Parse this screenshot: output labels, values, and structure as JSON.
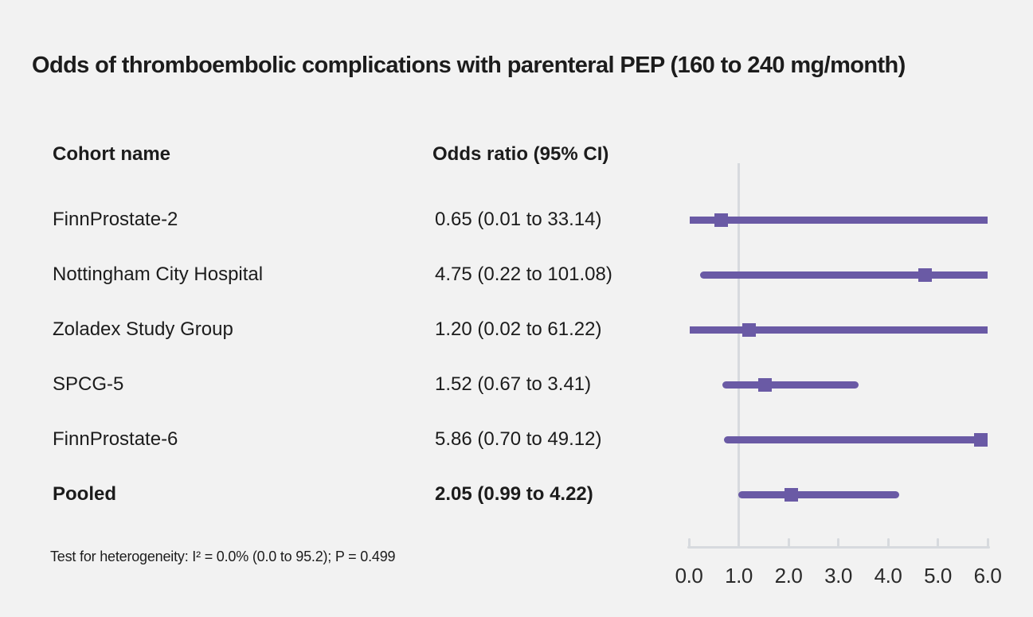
{
  "title": "Odds of thromboembolic complications with parenteral PEP (160 to 240 mg/month)",
  "columns": {
    "cohort": "Cohort name",
    "odds": "Odds ratio (95% CI)"
  },
  "footnote": "Test for heterogeneity: I² = 0.0% (0.0 to 95.2); P = 0.499",
  "colors": {
    "marker": "#6a5aa5",
    "axis": "#d7dade",
    "background": "#f2f2f2",
    "text": "#1c1c1c"
  },
  "chart_data": {
    "type": "forest",
    "title": "Odds of thromboembolic complications with parenteral PEP (160 to 240 mg/month)",
    "xlabel": "",
    "x_axis": {
      "min": 0,
      "max": 6,
      "ticks": [
        "0.0",
        "1.0",
        "2.0",
        "3.0",
        "4.0",
        "5.0",
        "6.0"
      ],
      "reference_line": 1.0
    },
    "rows": [
      {
        "cohort": "FinnProstate-2",
        "or": 0.65,
        "ci_low": 0.01,
        "ci_high": 33.14,
        "display": "0.65 (0.01 to 33.14)",
        "bold": false
      },
      {
        "cohort": "Nottingham City Hospital",
        "or": 4.75,
        "ci_low": 0.22,
        "ci_high": 101.08,
        "display": "4.75 (0.22 to 101.08)",
        "bold": false
      },
      {
        "cohort": "Zoladex Study Group",
        "or": 1.2,
        "ci_low": 0.02,
        "ci_high": 61.22,
        "display": "1.20 (0.02 to 61.22)",
        "bold": false
      },
      {
        "cohort": "SPCG-5",
        "or": 1.52,
        "ci_low": 0.67,
        "ci_high": 3.41,
        "display": "1.52 (0.67 to 3.41)",
        "bold": false
      },
      {
        "cohort": "FinnProstate-6",
        "or": 5.86,
        "ci_low": 0.7,
        "ci_high": 49.12,
        "display": "5.86 (0.70 to 49.12)",
        "bold": false
      },
      {
        "cohort": "Pooled",
        "or": 2.05,
        "ci_low": 0.99,
        "ci_high": 4.22,
        "display": "2.05 (0.99 to 4.22)",
        "bold": true
      }
    ]
  }
}
